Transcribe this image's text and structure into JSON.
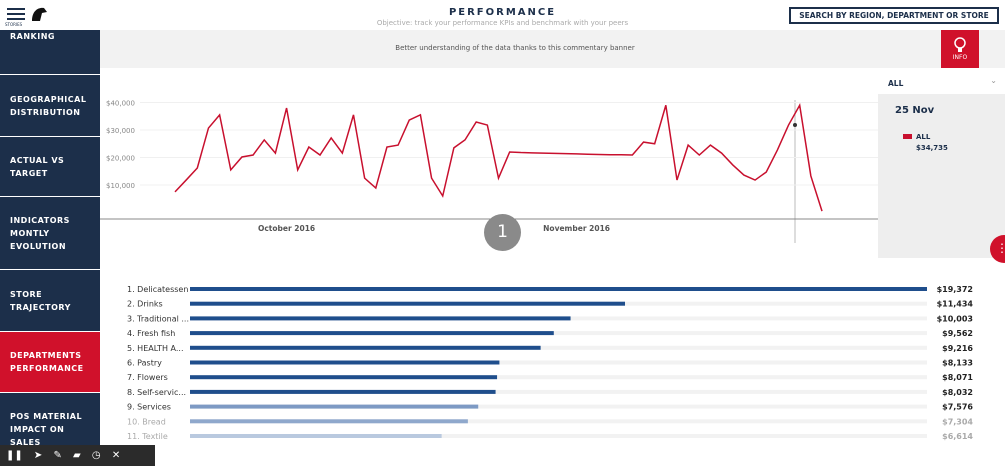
{
  "header": {
    "stories": "STORIES",
    "title": "PERFORMANCE",
    "subtitle": "Objective: track your performance KPIs and benchmark with your peers",
    "search": "SEARCH BY REGION, DEPARTMENT OR STORE"
  },
  "sidebar": [
    "RANKING",
    "GEOGRAPHICAL DISTRIBUTION",
    "ACTUAL VS TARGET",
    "INDICATORS MONTLY EVOLUTION",
    "STORE TRAJECTORY",
    "DEPARTMENTS PERFORMANCE",
    "POS MATERIAL IMPACT ON SALES"
  ],
  "banner": {
    "text": "Better understanding of the data thanks to this commentary banner",
    "info": "INFO"
  },
  "filter": "ALL",
  "tooltip": {
    "date": "25 Nov",
    "series": "ALL",
    "value": "$34,735"
  },
  "step": "1",
  "chart_data": [
    {
      "type": "line",
      "color": "#c8102e",
      "categories": [
        null,
        null,
        null,
        null,
        null,
        null,
        null,
        null,
        null,
        null,
        "October 2016",
        null,
        null,
        null,
        null,
        null,
        null,
        null,
        null,
        null,
        null,
        null,
        null,
        null,
        null,
        null,
        null,
        null,
        null,
        null,
        null,
        null,
        null,
        null,
        null,
        null,
        "November 2016",
        null,
        null,
        null,
        null,
        null,
        null,
        null,
        null,
        null,
        null,
        null,
        null,
        null,
        null,
        null,
        null,
        null,
        null,
        null,
        null,
        null,
        null
      ],
      "values": [
        7500,
        11800,
        16200,
        30700,
        35500,
        15500,
        20200,
        20900,
        26400,
        21600,
        38000,
        15500,
        23800,
        20900,
        27100,
        21600,
        35500,
        12500,
        8900,
        23800,
        24500,
        33600,
        35500,
        12500,
        6000,
        23500,
        26400,
        32900,
        31800,
        12500,
        22000,
        21800,
        21700,
        21600,
        21500,
        21400,
        21300,
        21200,
        21100,
        21000,
        21000,
        20900,
        25600,
        25000,
        39000,
        11800,
        24500,
        20900,
        24500,
        21600,
        17300,
        13600,
        11800,
        14700,
        22700,
        31800,
        39000,
        13300,
        500
      ],
      "ylim": [
        0,
        40000
      ],
      "yticks": [
        {
          "value": 10000,
          "label": "$10,000"
        },
        {
          "value": 20000,
          "label": "$20,000"
        },
        {
          "value": 30000,
          "label": "$30,000"
        },
        {
          "value": 40000,
          "label": "$40,000"
        }
      ],
      "grid": true
    },
    {
      "type": "hbar",
      "categories": [
        "1. Delicatessen",
        "2. Drinks",
        "3. Traditional ...",
        "4. Fresh fish",
        "5. HEALTH A...",
        "6. Pastry",
        "7. Flowers",
        "8. Self-servic...",
        "9. Services",
        "10. Bread",
        "11. Textile"
      ],
      "values": [
        19372,
        11434,
        10003,
        9562,
        9216,
        8133,
        8071,
        8032,
        7576,
        7304,
        6614
      ],
      "value_labels": [
        "$19,372",
        "$11,434",
        "$10,003",
        "$9,562",
        "$9,216",
        "$8,133",
        "$8,071",
        "$8,032",
        "$7,576",
        "$7,304",
        "$6,614"
      ],
      "colors": [
        "#1f4e8c",
        "#1f4e8c",
        "#1f4e8c",
        "#1f4e8c",
        "#1f4e8c",
        "#1f4e8c",
        "#1f4e8c",
        "#1f4e8c",
        "#7d9ac4",
        "#8fa8cc",
        "#b9c9df"
      ]
    }
  ]
}
